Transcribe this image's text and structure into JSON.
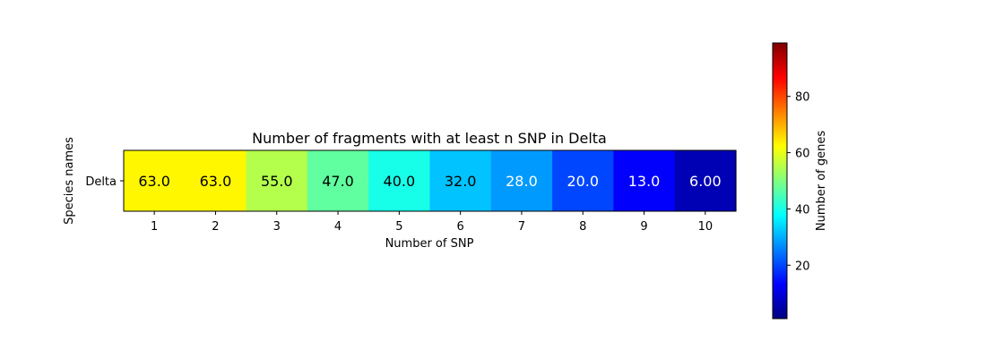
{
  "chart_data": {
    "type": "heatmap",
    "title": "Number of fragments with at least n SNP in Delta",
    "xlabel": "Number of SNP",
    "ylabel": "Species names",
    "x_categories": [
      "1",
      "2",
      "3",
      "4",
      "5",
      "6",
      "7",
      "8",
      "9",
      "10"
    ],
    "y_categories": [
      "Delta"
    ],
    "values": [
      [
        63,
        63,
        55,
        47,
        40,
        32,
        28,
        20,
        13,
        6
      ]
    ],
    "cell_labels": [
      [
        "63.0",
        "63.0",
        "55.0",
        "47.0",
        "40.0",
        "32.0",
        "28.0",
        "20.0",
        "13.0",
        "6.00"
      ]
    ],
    "colormap": "jet",
    "color_range": [
      1,
      99
    ],
    "colorbar": {
      "label": "Number of genes",
      "ticks": [
        20,
        40,
        60,
        80
      ],
      "tick_labels": [
        "20",
        "40",
        "60",
        "80"
      ]
    },
    "label_dark_color": "#000000",
    "label_light_color": "#ffffff"
  }
}
